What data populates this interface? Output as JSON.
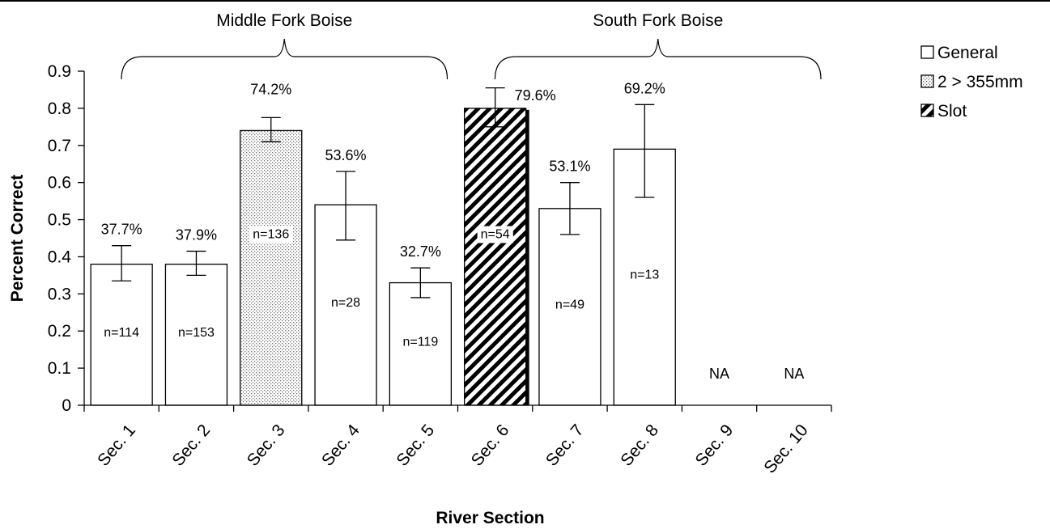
{
  "chart_data": {
    "type": "bar",
    "xlabel": "River Section",
    "ylabel": "Percent Correct",
    "ylim": [
      0,
      0.9
    ],
    "yticks": [
      "0",
      "0.1",
      "0.2",
      "0.3",
      "0.4",
      "0.5",
      "0.6",
      "0.7",
      "0.8",
      "0.9"
    ],
    "grid": false,
    "legend_position": "top-right",
    "legend": [
      {
        "label": "General",
        "pattern": "solid-white"
      },
      {
        "label": "2 > 355mm",
        "pattern": "dotted"
      },
      {
        "label": "Slot",
        "pattern": "diagonal-hatch"
      }
    ],
    "groups": [
      {
        "label": "Middle Fork Boise",
        "from": 0,
        "to": 4
      },
      {
        "label": "South Fork Boise",
        "from": 5,
        "to": 9
      }
    ],
    "categories": [
      "Sec. 1",
      "Sec. 2",
      "Sec. 3",
      "Sec. 4",
      "Sec. 5",
      "Sec. 6",
      "Sec. 7",
      "Sec. 8",
      "Sec. 9",
      "Sec. 10"
    ],
    "bars": [
      {
        "value": 0.38,
        "err_low": 0.335,
        "err_high": 0.43,
        "pct_label": "37.7%",
        "n_label": "n=114",
        "pattern": "solid-white"
      },
      {
        "value": 0.38,
        "err_low": 0.35,
        "err_high": 0.415,
        "pct_label": "37.9%",
        "n_label": "n=153",
        "pattern": "solid-white"
      },
      {
        "value": 0.74,
        "err_low": 0.71,
        "err_high": 0.775,
        "pct_label": "74.2%",
        "n_label": "n=136",
        "pattern": "dotted"
      },
      {
        "value": 0.54,
        "err_low": 0.445,
        "err_high": 0.63,
        "pct_label": "53.6%",
        "n_label": "n=28",
        "pattern": "solid-white"
      },
      {
        "value": 0.33,
        "err_low": 0.29,
        "err_high": 0.37,
        "pct_label": "32.7%",
        "n_label": "n=119",
        "pattern": "solid-white"
      },
      {
        "value": 0.8,
        "err_low": 0.75,
        "err_high": 0.855,
        "pct_label": "79.6%",
        "n_label": "n=54",
        "pattern": "diagonal-hatch"
      },
      {
        "value": 0.53,
        "err_low": 0.46,
        "err_high": 0.6,
        "pct_label": "53.1%",
        "n_label": "n=49",
        "pattern": "solid-white"
      },
      {
        "value": 0.69,
        "err_low": 0.56,
        "err_high": 0.81,
        "pct_label": "69.2%",
        "n_label": "n=13",
        "pattern": "solid-white"
      },
      {
        "value": null,
        "pct_label": "NA",
        "n_label": "",
        "pattern": "none"
      },
      {
        "value": null,
        "pct_label": "NA",
        "n_label": "",
        "pattern": "none"
      }
    ]
  }
}
